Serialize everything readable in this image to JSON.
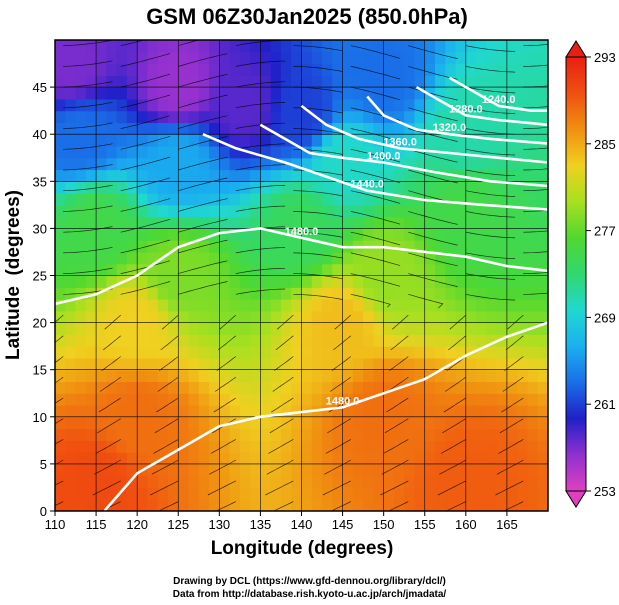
{
  "chart_data": {
    "type": "heatmap",
    "title": "GSM 06Z30Jan2025 (850.0hPa)",
    "xlabel": "Longitude (degrees)",
    "ylabel": "Latitude  (degrees)",
    "xlim": [
      110,
      170
    ],
    "ylim": [
      0,
      50
    ],
    "x_ticks": [
      110,
      115,
      120,
      125,
      130,
      135,
      140,
      145,
      150,
      155,
      160,
      165
    ],
    "y_ticks": [
      0,
      5,
      10,
      15,
      20,
      25,
      30,
      35,
      40,
      45
    ],
    "x_tick_labels": [
      "110",
      "115",
      "120",
      "125",
      "130",
      "135",
      "140",
      "145",
      "150",
      "155",
      "160",
      "165"
    ],
    "y_tick_labels": [
      "0",
      "5",
      "10",
      "15",
      "20",
      "25",
      "30",
      "35",
      "40",
      "45"
    ],
    "grid": true,
    "colorbar": {
      "position": "right",
      "min": 253,
      "max": 293,
      "ticks": [
        253,
        261,
        269,
        277,
        285,
        293
      ],
      "tick_labels": [
        "253",
        "261",
        "269",
        "277",
        "285",
        "293"
      ],
      "colors": [
        "#e040c0",
        "#9030d0",
        "#2020c8",
        "#1a6ee8",
        "#1ab0f0",
        "#20d8d0",
        "#30d870",
        "#50d830",
        "#a8e020",
        "#f0d020",
        "#f09010",
        "#f05010",
        "#e82010"
      ]
    },
    "temperature_field_samples": [
      {
        "lon": 112,
        "lat": 47,
        "value": 257
      },
      {
        "lon": 125,
        "lat": 45,
        "value": 256
      },
      {
        "lon": 133,
        "lat": 43,
        "value": 258
      },
      {
        "lon": 140,
        "lat": 42,
        "value": 261
      },
      {
        "lon": 150,
        "lat": 46,
        "value": 263
      },
      {
        "lon": 113,
        "lat": 40,
        "value": 263
      },
      {
        "lon": 125,
        "lat": 37,
        "value": 266
      },
      {
        "lon": 145,
        "lat": 37,
        "value": 270
      },
      {
        "lon": 160,
        "lat": 40,
        "value": 271
      },
      {
        "lon": 115,
        "lat": 30,
        "value": 275
      },
      {
        "lon": 140,
        "lat": 30,
        "value": 274
      },
      {
        "lon": 160,
        "lat": 32,
        "value": 275
      },
      {
        "lon": 125,
        "lat": 25,
        "value": 278
      },
      {
        "lon": 150,
        "lat": 25,
        "value": 279
      },
      {
        "lon": 120,
        "lat": 20,
        "value": 283
      },
      {
        "lon": 145,
        "lat": 20,
        "value": 284
      },
      {
        "lon": 120,
        "lat": 10,
        "value": 288
      },
      {
        "lon": 150,
        "lat": 10,
        "value": 288
      },
      {
        "lon": 115,
        "lat": 3,
        "value": 290
      },
      {
        "lon": 160,
        "lat": 3,
        "value": 289
      }
    ],
    "contours": [
      {
        "label": "1440.0",
        "value": 1440.0,
        "points": [
          [
            128,
            40
          ],
          [
            132,
            38.5
          ],
          [
            138,
            37
          ],
          [
            143,
            35.5
          ],
          [
            148,
            34
          ],
          [
            155,
            33
          ],
          [
            162,
            32.5
          ],
          [
            170,
            32
          ]
        ]
      },
      {
        "label": "1400.0",
        "value": 1400.0,
        "points": [
          [
            135,
            41
          ],
          [
            138,
            39.5
          ],
          [
            141,
            38
          ],
          [
            145,
            37.5
          ],
          [
            150,
            37
          ],
          [
            156,
            36
          ],
          [
            163,
            35
          ],
          [
            170,
            34.5
          ]
        ]
      },
      {
        "label": "1360.0",
        "value": 1360.0,
        "points": [
          [
            140,
            43
          ],
          [
            143,
            41
          ],
          [
            147,
            39.5
          ],
          [
            152,
            38.5
          ],
          [
            158,
            38
          ],
          [
            164,
            37.5
          ],
          [
            170,
            37
          ]
        ]
      },
      {
        "label": "1320.0",
        "value": 1320.0,
        "points": [
          [
            148,
            44
          ],
          [
            150,
            42
          ],
          [
            154,
            40.5
          ],
          [
            158,
            40
          ],
          [
            163,
            39.5
          ],
          [
            170,
            39
          ]
        ]
      },
      {
        "label": "1280.0",
        "value": 1280.0,
        "points": [
          [
            154,
            45
          ],
          [
            157,
            43.5
          ],
          [
            160,
            42
          ],
          [
            164,
            41.5
          ],
          [
            170,
            41
          ]
        ]
      },
      {
        "label": "1240.0",
        "value": 1240.0,
        "points": [
          [
            158,
            46
          ],
          [
            161,
            44.5
          ],
          [
            164,
            43
          ],
          [
            168,
            42.5
          ],
          [
            170,
            42.5
          ]
        ]
      },
      {
        "label": "1480.0",
        "value": 1480.0,
        "points": [
          [
            110,
            22
          ],
          [
            115,
            23
          ],
          [
            120,
            25
          ],
          [
            125,
            28
          ],
          [
            130,
            29.5
          ],
          [
            135,
            30
          ],
          [
            140,
            29
          ],
          [
            145,
            28
          ],
          [
            150,
            28
          ],
          [
            155,
            27.5
          ],
          [
            160,
            27
          ],
          [
            165,
            26
          ],
          [
            170,
            25.5
          ]
        ]
      },
      {
        "label": "1480.0",
        "value": 1480.0,
        "points": [
          [
            116,
            0
          ],
          [
            120,
            4
          ],
          [
            125,
            6.5
          ],
          [
            130,
            9
          ],
          [
            135,
            10
          ],
          [
            140,
            10.5
          ],
          [
            145,
            11
          ],
          [
            150,
            12.5
          ],
          [
            155,
            14
          ],
          [
            160,
            16.5
          ],
          [
            165,
            18.5
          ],
          [
            170,
            20
          ]
        ]
      }
    ]
  },
  "credits": {
    "line1": "Drawing by DCL (https://www.gfd-dennou.org/library/dcl/)",
    "line2": "Data from http://database.rish.kyoto-u.ac.jp/arch/jmadata/"
  }
}
